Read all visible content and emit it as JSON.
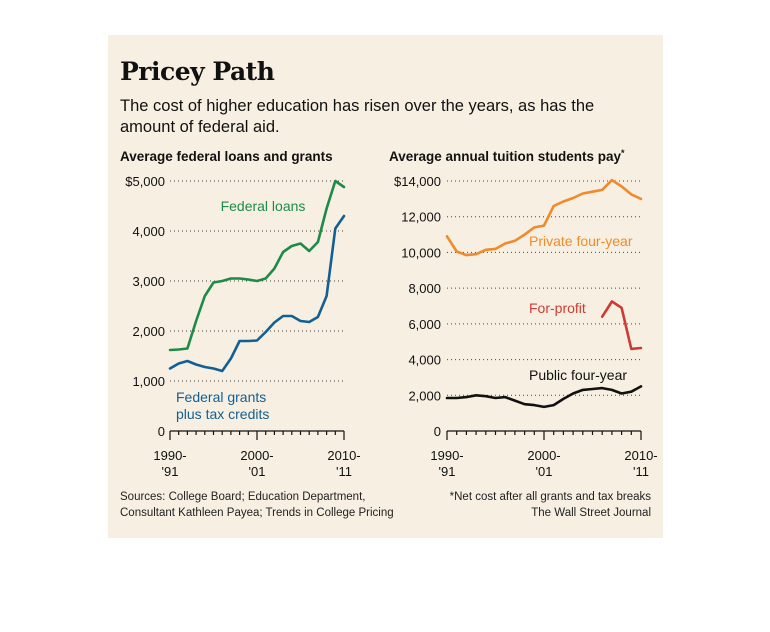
{
  "title": "Pricey Path",
  "subtitle": "The cost of higher education has risen over the years, as has the amount of federal aid.",
  "source": [
    "Sources: College Board; Education Department,",
    "Consultant Kathleen Payea; Trends in College Pricing"
  ],
  "footnote": "*Net cost after all grants and tax breaks",
  "publisher": "The Wall Street Journal",
  "colors": {
    "green": "#1e8a4a",
    "blue": "#135f94",
    "orange": "#ef8b2c",
    "red": "#cf3a35",
    "black": "#111111",
    "background": "#f7f0e2"
  },
  "chart_data": [
    {
      "type": "line",
      "title": "Average federal loans and grants",
      "xlabel": "",
      "ylabel": "",
      "xlim": [
        1990,
        2010
      ],
      "ylim": [
        0,
        5000
      ],
      "yticks": [
        {
          "value": 0,
          "label": "0"
        },
        {
          "value": 1000,
          "label": "1,000"
        },
        {
          "value": 2000,
          "label": "2,000"
        },
        {
          "value": 3000,
          "label": "3,000"
        },
        {
          "value": 4000,
          "label": "4,000"
        },
        {
          "value": 5000,
          "label": "$5,000"
        }
      ],
      "xticks": [
        {
          "value": 1990,
          "label": [
            "1990-",
            "'91"
          ]
        },
        {
          "value": 2000,
          "label": [
            "2000-",
            "'01"
          ]
        },
        {
          "value": 2010,
          "label": [
            "2010-",
            "'11"
          ]
        }
      ],
      "x": [
        1990,
        1991,
        1992,
        1993,
        1994,
        1995,
        1996,
        1997,
        1998,
        1999,
        2000,
        2001,
        2002,
        2003,
        2004,
        2005,
        2006,
        2007,
        2008,
        2009,
        2010
      ],
      "series": [
        {
          "name": "Federal loans",
          "label": [
            "Federal loans"
          ],
          "color_key": "green",
          "values": [
            1620,
            1630,
            1650,
            2200,
            2700,
            2970,
            3000,
            3050,
            3050,
            3030,
            3000,
            3050,
            3250,
            3580,
            3700,
            3750,
            3600,
            3780,
            4450,
            5000,
            4880
          ]
        },
        {
          "name": "Federal grants plus tax credits",
          "label": [
            "Federal grants",
            "plus tax credits"
          ],
          "color_key": "blue",
          "values": [
            1250,
            1350,
            1400,
            1330,
            1280,
            1250,
            1200,
            1450,
            1800,
            1800,
            1810,
            1980,
            2170,
            2300,
            2300,
            2200,
            2180,
            2280,
            2700,
            4050,
            4300
          ]
        }
      ]
    },
    {
      "type": "line",
      "title": "Average annual tuition students pay",
      "title_mark": "*",
      "xlabel": "",
      "ylabel": "",
      "xlim": [
        1990,
        2010
      ],
      "ylim": [
        0,
        14000
      ],
      "yticks": [
        {
          "value": 0,
          "label": "0"
        },
        {
          "value": 2000,
          "label": "2,000"
        },
        {
          "value": 4000,
          "label": "4,000"
        },
        {
          "value": 6000,
          "label": "6,000"
        },
        {
          "value": 8000,
          "label": "8,000"
        },
        {
          "value": 10000,
          "label": "10,000"
        },
        {
          "value": 12000,
          "label": "12,000"
        },
        {
          "value": 14000,
          "label": "$14,000"
        }
      ],
      "xticks": [
        {
          "value": 1990,
          "label": [
            "1990-",
            "'91"
          ]
        },
        {
          "value": 2000,
          "label": [
            "2000-",
            "'01"
          ]
        },
        {
          "value": 2010,
          "label": [
            "2010-",
            "'11"
          ]
        }
      ],
      "series": [
        {
          "name": "Private four-year",
          "label": [
            "Private four-year"
          ],
          "color_key": "orange",
          "x": [
            1990,
            1991,
            1992,
            1993,
            1994,
            1995,
            1996,
            1997,
            1998,
            1999,
            2000,
            2001,
            2002,
            2003,
            2004,
            2005,
            2006,
            2007,
            2008,
            2009,
            2010
          ],
          "values": [
            10900,
            10050,
            9850,
            9900,
            10150,
            10200,
            10500,
            10650,
            11000,
            11400,
            11500,
            12600,
            12850,
            13050,
            13300,
            13400,
            13500,
            14050,
            13700,
            13250,
            13000
          ]
        },
        {
          "name": "For-profit",
          "label": [
            "For-profit"
          ],
          "color_key": "red",
          "x": [
            2006,
            2007,
            2008,
            2009,
            2010
          ],
          "values": [
            6400,
            7250,
            6900,
            4600,
            4650
          ]
        },
        {
          "name": "Public four-year",
          "label": [
            "Public four-year"
          ],
          "color_key": "black",
          "x": [
            1990,
            1991,
            1992,
            1993,
            1994,
            1995,
            1996,
            1997,
            1998,
            1999,
            2000,
            2001,
            2002,
            2003,
            2004,
            2005,
            2006,
            2007,
            2008,
            2009,
            2010
          ],
          "values": [
            1850,
            1850,
            1900,
            2000,
            1950,
            1850,
            1900,
            1700,
            1500,
            1450,
            1350,
            1450,
            1800,
            2100,
            2300,
            2350,
            2400,
            2300,
            2100,
            2200,
            2500
          ]
        }
      ]
    }
  ]
}
